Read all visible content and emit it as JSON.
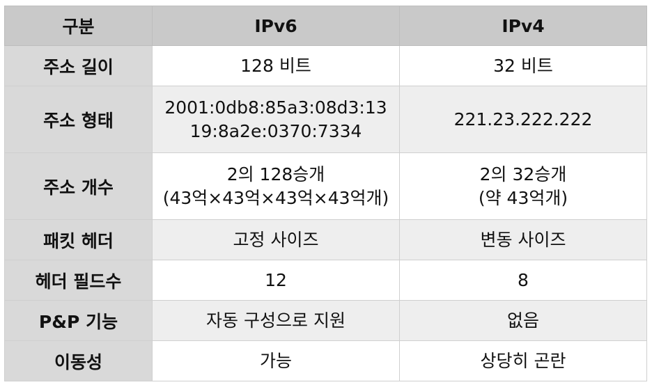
{
  "headers": [
    "구분",
    "IPv6",
    "IPv4"
  ],
  "rows": [
    {
      "label": "주소 길이",
      "ipv6": [
        "128 비트"
      ],
      "ipv4": [
        "32 비트"
      ]
    },
    {
      "label": "주소 형태",
      "ipv6": [
        "2001:0db8:85a3:08d3:13",
        "19:8a2e:0370:7334"
      ],
      "ipv4": [
        "221.23.222.222"
      ]
    },
    {
      "label": "주소 개수",
      "ipv6": [
        "2의 128승개",
        "(43억×43억×43억×43억개)"
      ],
      "ipv4": [
        "2의 32승개",
        "(약 43억개)"
      ]
    },
    {
      "label": "패킷 헤더",
      "ipv6": [
        "고정 사이즈"
      ],
      "ipv4": [
        "변동 사이즈"
      ]
    },
    {
      "label": "헤더 필드수",
      "ipv6": [
        "12"
      ],
      "ipv4": [
        "8"
      ]
    },
    {
      "label": "P&P 기능",
      "ipv6": [
        "자동 구성으로 지원"
      ],
      "ipv4": [
        "없음"
      ]
    },
    {
      "label": "이동성",
      "ipv6": [
        "가능"
      ],
      "ipv4": [
        "상당히 곤란"
      ]
    }
  ]
}
